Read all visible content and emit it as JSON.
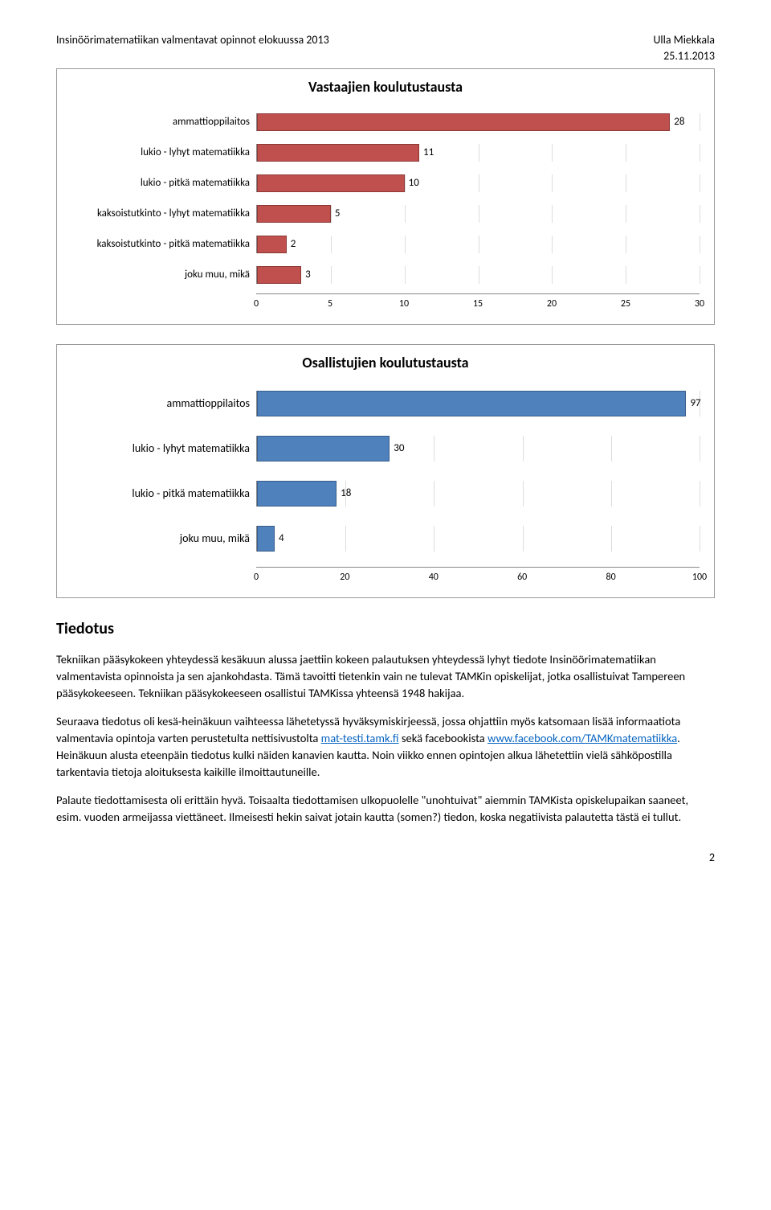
{
  "header": {
    "left": "Insinöörimatematiikan valmentavat opinnot elokuussa 2013",
    "right_name": "Ulla Miekkala",
    "right_date": "25.11.2013"
  },
  "chart1": {
    "type": "bar",
    "title": "Vastaajien koulutustausta",
    "bar_color": "#c0504d",
    "border_color": "#8c3836",
    "xlim": 30,
    "ticks": [
      0,
      5,
      10,
      15,
      20,
      25,
      30
    ],
    "categories": [
      {
        "label": "ammattioppilaitos",
        "value": 28
      },
      {
        "label": "lukio - lyhyt matematiikka",
        "value": 11
      },
      {
        "label": "lukio - pitkä matematiikka",
        "value": 10
      },
      {
        "label": "kaksoistutkinto - lyhyt matematiikka",
        "value": 5
      },
      {
        "label": "kaksoistutkinto - pitkä matematiikka",
        "value": 2
      },
      {
        "label": "joku muu, mikä",
        "value": 3
      }
    ]
  },
  "chart2": {
    "type": "bar",
    "title": "Osallistujien koulutustausta",
    "bar_color": "#4f81bd",
    "border_color": "#385d8a",
    "xlim": 100,
    "ticks": [
      0,
      20,
      40,
      60,
      80,
      100
    ],
    "categories": [
      {
        "label": "ammattioppilaitos",
        "value": 97
      },
      {
        "label": "lukio - lyhyt matematiikka",
        "value": 30
      },
      {
        "label": "lukio - pitkä matematiikka",
        "value": 18
      },
      {
        "label": "joku muu, mikä",
        "value": 4
      }
    ]
  },
  "section_title": "Tiedotus",
  "paragraphs": {
    "p1": "Tekniikan pääsykokeen yhteydessä kesäkuun alussa jaettiin kokeen palautuksen yhteydessä lyhyt tiedote Insinöörimatematiikan valmentavista opinnoista ja sen ajankohdasta. Tämä tavoitti tietenkin vain ne tulevat TAMKin opiskelijat, jotka osallistuivat Tampereen pääsykokeeseen. Tekniikan pääsykokeeseen osallistui TAMKissa yhteensä 1948 hakijaa.",
    "p2a": "Seuraava tiedotus oli kesä-heinäkuun vaihteessa lähetetyssä hyväksymiskirjeessä, jossa ohjattiin myös katsomaan lisää informaatiota valmentavia opintoja varten perustetulta nettisivustolta ",
    "p2_link1_text": "mat-testi.tamk.fi",
    "p2b": " sekä facebookista ",
    "p2_link2_text": "www.facebook.com/TAMKmatematiikka",
    "p2c": ". Heinäkuun alusta eteenpäin tiedotus kulki näiden kanavien kautta. Noin viikko ennen opintojen alkua lähetettiin vielä sähköpostilla tarkentavia tietoja aloituksesta kaikille ilmoittautuneille.",
    "p3": "Palaute tiedottamisesta oli erittäin hyvä. Toisaalta tiedottamisen ulkopuolelle \"unohtuivat\" aiemmin TAMKista opiskelupaikan saaneet, esim. vuoden armeijassa viettäneet. Ilmeisesti hekin saivat jotain kautta (somen?) tiedon, koska negatiivista palautetta tästä ei tullut."
  },
  "page_number": "2"
}
